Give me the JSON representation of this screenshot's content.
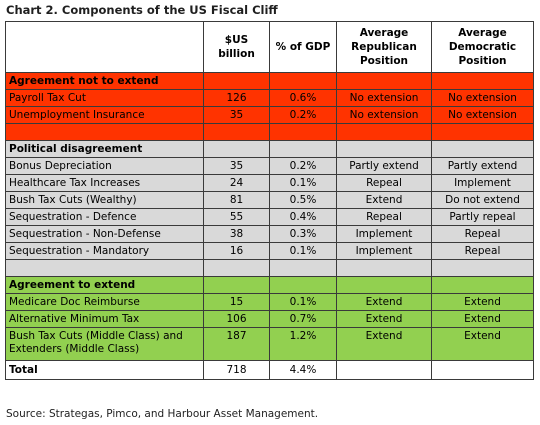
{
  "title": "Chart 2.  Components of the US Fiscal Cliff",
  "columns": [
    "",
    "$US billion",
    "% of GDP",
    "Average Republican Position",
    "Average Democratic Position"
  ],
  "sections": [
    {
      "label": "Agreement not to extend",
      "color": "#ff3300",
      "rows": [
        [
          "Payroll Tax Cut",
          "126",
          "0.6%",
          "No extension",
          "No extension"
        ],
        [
          "Unemployment Insurance",
          "35",
          "0.2%",
          "No extension",
          "No extension"
        ]
      ]
    },
    {
      "label": "Political disagreement",
      "color": "#d9d9d9",
      "rows": [
        [
          "Bonus Depreciation",
          "35",
          "0.2%",
          "Partly extend",
          "Partly extend"
        ],
        [
          "Healthcare Tax Increases",
          "24",
          "0.1%",
          "Repeal",
          "Implement"
        ],
        [
          "Bush Tax Cuts (Wealthy)",
          "81",
          "0.5%",
          "Extend",
          "Do not extend"
        ],
        [
          "Sequestration - Defence",
          "55",
          "0.4%",
          "Repeal",
          "Partly repeal"
        ],
        [
          "Sequestration - Non-Defense",
          "38",
          "0.3%",
          "Implement",
          "Repeal"
        ],
        [
          "Sequestration - Mandatory",
          "16",
          "0.1%",
          "Implement",
          "Repeal"
        ]
      ]
    },
    {
      "label": "Agreement  to extend",
      "color": "#92d050",
      "rows": [
        [
          "Medicare Doc Reimburse",
          "15",
          "0.1%",
          "Extend",
          "Extend"
        ],
        [
          "Alternative Minimum Tax",
          "106",
          "0.7%",
          "Extend",
          "Extend"
        ],
        [
          "Bush Tax Cuts (Middle Class) and Extenders (Middle Class)",
          "187",
          "1.2%",
          "Extend",
          "Extend"
        ]
      ]
    }
  ],
  "total": [
    "Total",
    "718",
    "4.4%",
    "",
    ""
  ],
  "source": "Source: Strategas, Pimco, and Harbour Asset Management."
}
